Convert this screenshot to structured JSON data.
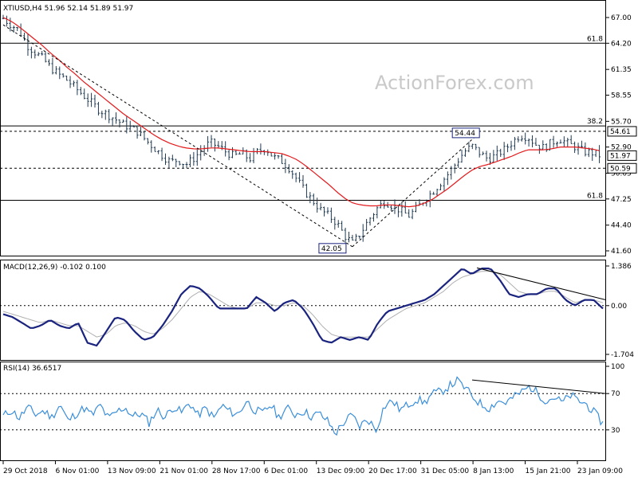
{
  "header": {
    "symbol_line": "XTIUSD,H4  51.96 52.14 51.89 51.97"
  },
  "watermark": "ActionForex.com",
  "colors": {
    "candles": "#1f3a52",
    "ema": "#e31a1c",
    "macd_line": "#1a237e",
    "signal_line": "#b0b0b0",
    "rsi_line": "#3b8fd9",
    "trend": "#000000",
    "price_tag_bg": "#ffffff"
  },
  "chart_data": [
    {
      "type": "candlestick",
      "panel": "price",
      "ylim": [
        41.6,
        67.0
      ],
      "y_ticks": [
        "67.00",
        "64.20",
        "61.35",
        "58.55",
        "55.70",
        "52.90",
        "50.05",
        "47.25",
        "44.40",
        "41.60"
      ],
      "x_tick_labels": [
        "29 Oct 2018",
        "6 Nov 01:00",
        "13 Nov 09:00",
        "21 Nov 01:00",
        "28 Nov 17:00",
        "6 Dec 01:00",
        "13 Dec 09:00",
        "20 Dec 17:00",
        "31 Dec 05:00",
        "8 Jan 13:00",
        "15 Jan 21:00",
        "23 Jan 09:00"
      ],
      "close_path": [
        66.9,
        66.2,
        65.6,
        64.0,
        63.2,
        62.5,
        61.5,
        60.8,
        60.2,
        59.4,
        58.6,
        57.8,
        57.0,
        56.5,
        56.0,
        55.4,
        55.0,
        54.5,
        53.6,
        52.8,
        52.0,
        51.3,
        51.5,
        51.0,
        51.7,
        52.6,
        53.4,
        53.0,
        52.4,
        51.9,
        52.2,
        51.6,
        52.4,
        52.8,
        51.8,
        51.4,
        50.6,
        49.3,
        48.0,
        47.0,
        46.0,
        45.4,
        44.6,
        43.2,
        42.4,
        43.6,
        45.0,
        46.2,
        47.0,
        46.5,
        46.0,
        45.4,
        46.2,
        47.2,
        48.0,
        49.0,
        50.0,
        51.2,
        52.4,
        53.0,
        52.2,
        51.6,
        52.0,
        52.6,
        53.4,
        54.2,
        54.0,
        53.2,
        52.8,
        53.4,
        53.8,
        53.3,
        52.9,
        52.4,
        52.3,
        52.0
      ],
      "ema_path": [
        67.0,
        66.6,
        66.0,
        65.3,
        64.6,
        63.9,
        63.1,
        62.4,
        61.6,
        60.9,
        60.1,
        59.4,
        58.7,
        58.0,
        57.3,
        56.6,
        56.0,
        55.4,
        54.8,
        54.2,
        53.7,
        53.3,
        53.0,
        52.8,
        52.7,
        52.7,
        52.8,
        52.8,
        52.7,
        52.6,
        52.5,
        52.4,
        52.4,
        52.4,
        52.3,
        52.2,
        51.9,
        51.5,
        50.9,
        50.2,
        49.5,
        48.8,
        48.0,
        47.3,
        46.8,
        46.6,
        46.5,
        46.5,
        46.6,
        46.6,
        46.5,
        46.4,
        46.5,
        46.8,
        47.2,
        47.8,
        48.4,
        49.1,
        49.8,
        50.4,
        50.8,
        51.0,
        51.3,
        51.6,
        51.9,
        52.3,
        52.6,
        52.6,
        52.6,
        52.7,
        52.9,
        52.9,
        52.9,
        52.8,
        52.7,
        52.5
      ],
      "levels": [
        {
          "label": "61.8",
          "value": 64.2,
          "style": "solid"
        },
        {
          "label": "38.2",
          "value": 55.2,
          "style": "solid"
        },
        {
          "value": 54.61,
          "style": "dashed"
        },
        {
          "value": 50.59,
          "style": "dashed"
        },
        {
          "label": "61.8",
          "value": 47.1,
          "style": "solid"
        }
      ],
      "price_tags": [
        {
          "text": "54.61",
          "value": 54.61
        },
        {
          "text": "51.97",
          "value": 51.97
        },
        {
          "text": "50.59",
          "value": 50.59
        }
      ],
      "annotations": [
        {
          "text": "54.44",
          "value": 54.44
        },
        {
          "text": "42.05",
          "value": 42.05
        }
      ]
    },
    {
      "type": "line",
      "panel": "macd",
      "title": "MACD(12,26,9) -0.102 0.100",
      "ylim": [
        -1.704,
        1.386
      ],
      "y_ticks": [
        "1.386",
        "0.00",
        "-1.704"
      ],
      "series": [
        {
          "values": [
            -0.3,
            -0.4,
            -0.6,
            -0.8,
            -0.7,
            -0.5,
            -0.7,
            -0.8,
            -0.6,
            -1.3,
            -1.4,
            -0.9,
            -0.4,
            -0.5,
            -0.9,
            -1.2,
            -1.1,
            -0.7,
            -0.2,
            0.4,
            0.7,
            0.6,
            0.3,
            -0.1,
            -0.1,
            -0.1,
            -0.1,
            0.3,
            0.1,
            -0.2,
            0.1,
            0.2,
            -0.1,
            -0.6,
            -1.2,
            -1.3,
            -1.1,
            -1.2,
            -1.1,
            -1.2,
            -0.6,
            -0.2,
            -0.1,
            0.0,
            0.1,
            0.2,
            0.4,
            0.7,
            1.0,
            1.3,
            1.1,
            1.3,
            1.3,
            0.9,
            0.4,
            0.3,
            0.4,
            0.4,
            0.6,
            0.6,
            0.2,
            0.0,
            0.2,
            0.2,
            -0.1
          ]
        },
        {
          "values": [
            -0.2,
            -0.3,
            -0.4,
            -0.5,
            -0.6,
            -0.5,
            -0.6,
            -0.7,
            -0.7,
            -0.9,
            -1.1,
            -1.0,
            -0.7,
            -0.6,
            -0.7,
            -0.9,
            -1.0,
            -0.8,
            -0.5,
            -0.1,
            0.3,
            0.5,
            0.4,
            0.2,
            0.0,
            -0.1,
            -0.1,
            0.1,
            0.1,
            0.0,
            0.0,
            0.1,
            0.0,
            -0.3,
            -0.7,
            -1.0,
            -1.1,
            -1.1,
            -1.1,
            -1.1,
            -0.8,
            -0.5,
            -0.3,
            -0.1,
            0.0,
            0.1,
            0.3,
            0.5,
            0.8,
            1.0,
            1.1,
            1.2,
            1.2,
            1.1,
            0.8,
            0.5,
            0.4,
            0.4,
            0.5,
            0.5,
            0.3,
            0.1,
            0.2,
            0.2,
            0.1
          ]
        }
      ]
    },
    {
      "type": "line",
      "panel": "rsi",
      "title": "RSI(14) 36.6517",
      "ylim": [
        0,
        100
      ],
      "y_ticks": [
        "100",
        "70",
        "30"
      ],
      "series": [
        {
          "values": [
            45,
            52,
            43,
            55,
            47,
            51,
            44,
            58,
            40,
            48,
            54,
            46,
            57,
            42,
            50,
            55,
            45,
            48,
            38,
            52,
            44,
            56,
            49,
            60,
            46,
            54,
            43,
            57,
            50,
            47,
            62,
            52,
            48,
            58,
            44,
            54,
            47,
            51,
            45,
            48,
            40,
            26,
            38,
            46,
            34,
            42,
            30,
            56,
            62,
            52,
            58,
            64,
            60,
            70,
            72,
            78,
            84,
            76,
            66,
            58,
            54,
            62,
            60,
            66,
            72,
            78,
            70,
            62,
            66,
            60,
            68,
            62,
            58,
            48,
            37
          ]
        }
      ]
    }
  ]
}
